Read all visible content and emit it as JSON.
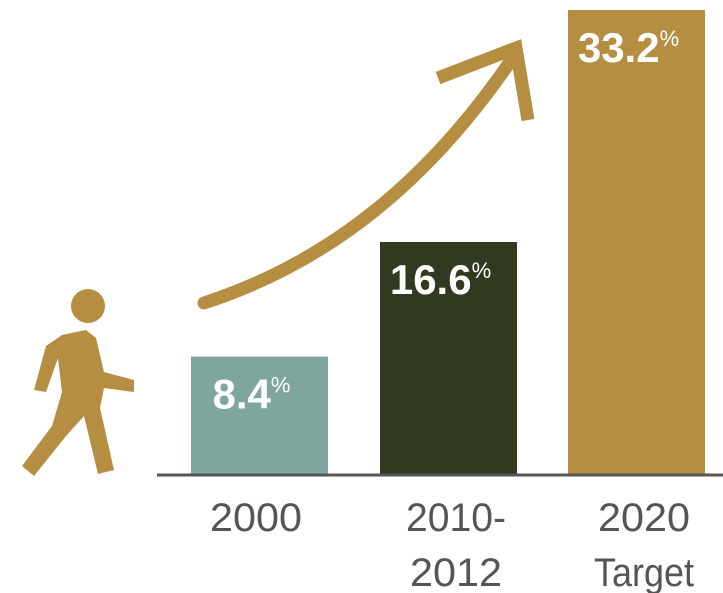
{
  "chart_data": {
    "type": "bar",
    "categories": [
      [
        "2000"
      ],
      [
        "2010-",
        "2012"
      ],
      [
        "2020",
        "Target"
      ]
    ],
    "values": [
      8.4,
      16.6,
      33.2
    ],
    "value_labels": [
      "8.4",
      "16.6",
      "33.2"
    ],
    "unit": "%",
    "colors": [
      "#7fa69e",
      "#313a20",
      "#b58e42"
    ],
    "accent_color": "#b58e42",
    "axis_color": "#555555",
    "label_color": "#ffffff",
    "icons": [
      "walking-person-icon",
      "trend-arrow-icon"
    ]
  }
}
